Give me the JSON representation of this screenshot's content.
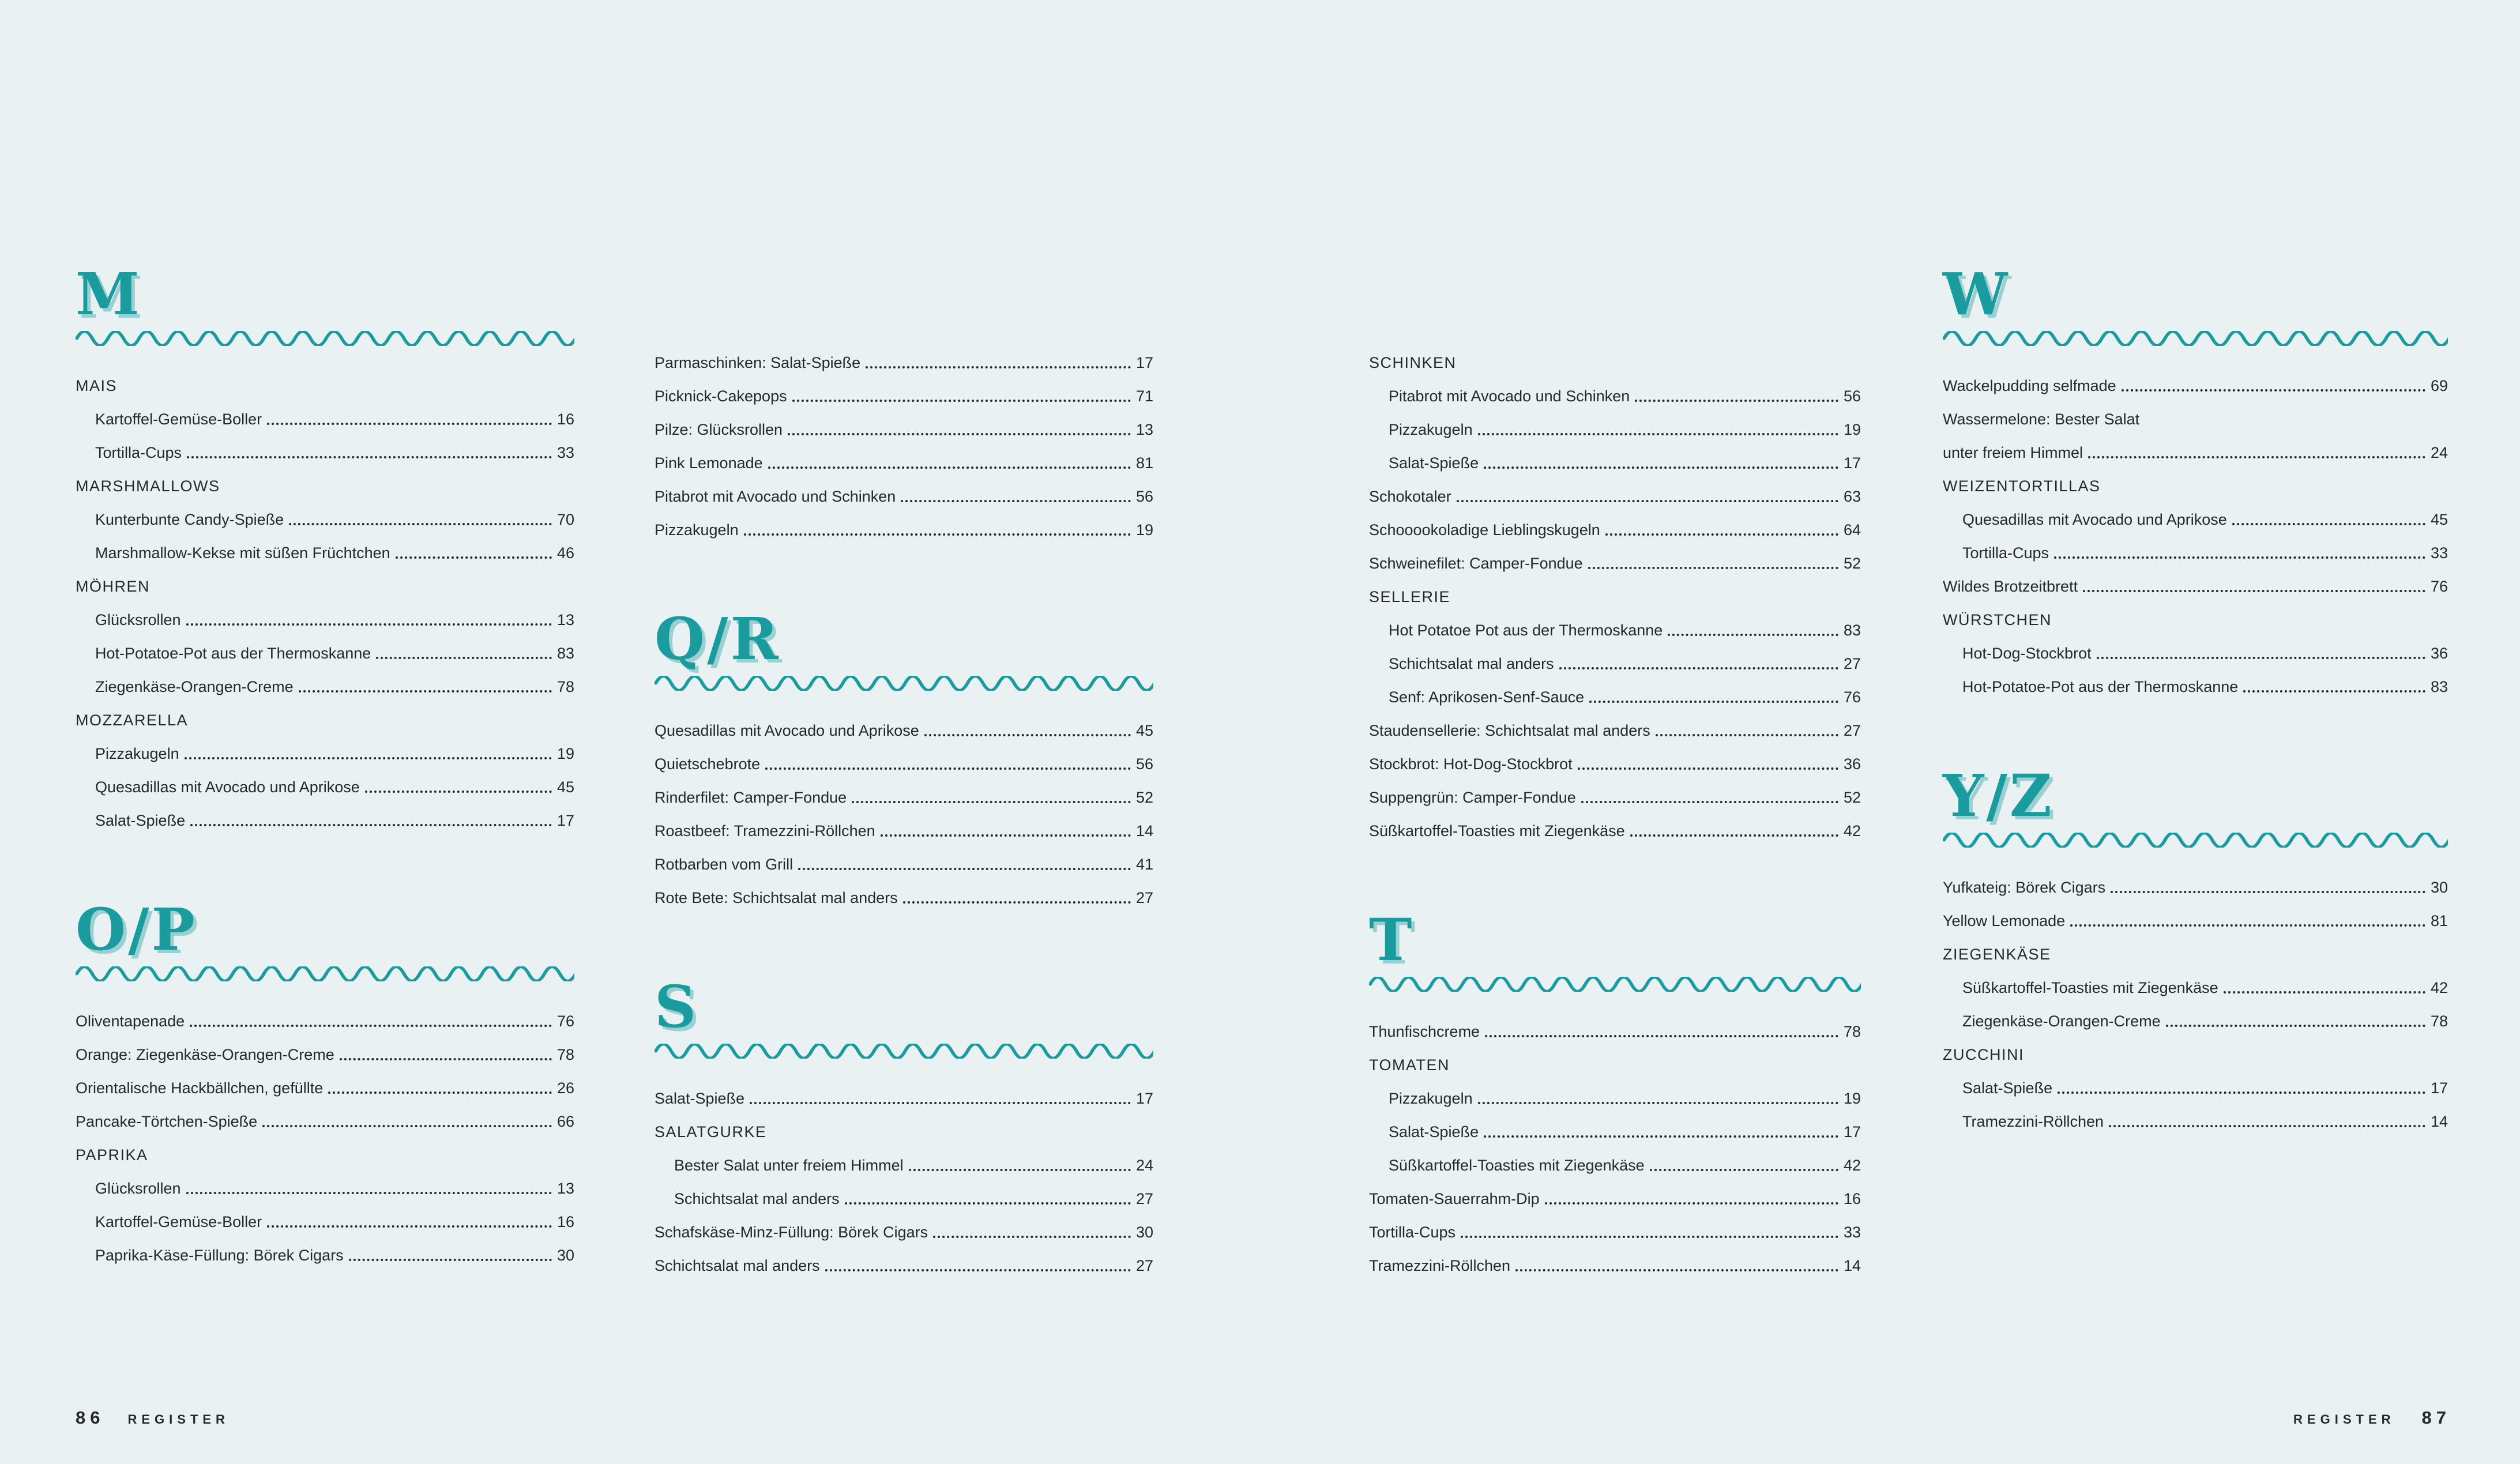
{
  "page": {
    "background": "#e9f1f2",
    "accent": "#1a9b9e",
    "text_color": "#26292c",
    "footer_left": {
      "page_number": "86",
      "section_label": "REGISTER"
    },
    "footer_right": {
      "section_label": "REGISTER",
      "page_number": "87"
    }
  },
  "columns": [
    {
      "id": "col-1",
      "blocks": [
        {
          "type": "letter",
          "text": "M"
        },
        {
          "type": "subhead",
          "text": "MAIS"
        },
        {
          "type": "entry",
          "indent": true,
          "text": "Kartoffel-Gemüse-Boller",
          "page": "16"
        },
        {
          "type": "entry",
          "indent": true,
          "text": "Tortilla-Cups",
          "page": "33"
        },
        {
          "type": "subhead",
          "text": "MARSHMALLOWS"
        },
        {
          "type": "entry",
          "indent": true,
          "text": "Kunterbunte Candy-Spieße",
          "page": "70"
        },
        {
          "type": "entry",
          "indent": true,
          "text": "Marshmallow-Kekse mit süßen Früchtchen",
          "page": "46"
        },
        {
          "type": "subhead",
          "text": "MÖHREN"
        },
        {
          "type": "entry",
          "indent": true,
          "text": "Glücksrollen",
          "page": "13"
        },
        {
          "type": "entry",
          "indent": true,
          "text": "Hot-Potatoe-Pot aus der Thermoskanne",
          "page": "83"
        },
        {
          "type": "entry",
          "indent": true,
          "text": "Ziegenkäse-Orangen-Creme",
          "page": "78"
        },
        {
          "type": "subhead",
          "text": "MOZZARELLA"
        },
        {
          "type": "entry",
          "indent": true,
          "text": "Pizzakugeln",
          "page": "19"
        },
        {
          "type": "entry",
          "indent": true,
          "text": "Quesadillas mit Avocado und Aprikose",
          "page": "45"
        },
        {
          "type": "entry",
          "indent": true,
          "text": "Salat-Spieße",
          "page": "17"
        },
        {
          "type": "letter",
          "text": "O/P"
        },
        {
          "type": "entry",
          "text": "Oliventapenade",
          "page": "76"
        },
        {
          "type": "entry",
          "text": "Orange: Ziegenkäse-Orangen-Creme",
          "page": "78"
        },
        {
          "type": "entry",
          "text": "Orientalische Hackbällchen, gefüllte",
          "page": "26"
        },
        {
          "type": "entry",
          "text": "Pancake-Törtchen-Spieße",
          "page": "66"
        },
        {
          "type": "subhead",
          "text": "PAPRIKA"
        },
        {
          "type": "entry",
          "indent": true,
          "text": "Glücksrollen",
          "page": "13"
        },
        {
          "type": "entry",
          "indent": true,
          "text": "Kartoffel-Gemüse-Boller",
          "page": "16"
        },
        {
          "type": "entry",
          "indent": true,
          "text": "Paprika-Käse-Füllung: Börek Cigars",
          "page": "30"
        }
      ]
    },
    {
      "id": "col-2",
      "blocks": [
        {
          "type": "spacer"
        },
        {
          "type": "entry",
          "text": "Parmaschinken: Salat-Spieße",
          "page": "17"
        },
        {
          "type": "entry",
          "text": "Picknick-Cakepops",
          "page": "71"
        },
        {
          "type": "entry",
          "text": "Pilze: Glücksrollen",
          "page": "13"
        },
        {
          "type": "entry",
          "text": "Pink Lemonade",
          "page": "81"
        },
        {
          "type": "entry",
          "text": "Pitabrot mit Avocado und Schinken",
          "page": "56"
        },
        {
          "type": "entry",
          "text": "Pizzakugeln",
          "page": "19"
        },
        {
          "type": "letter",
          "text": "Q/R"
        },
        {
          "type": "entry",
          "text": "Quesadillas mit Avocado und Aprikose",
          "page": "45"
        },
        {
          "type": "entry",
          "text": "Quietschebrote",
          "page": "56"
        },
        {
          "type": "entry",
          "text": "Rinderfilet: Camper-Fondue",
          "page": "52"
        },
        {
          "type": "entry",
          "text": "Roastbeef: Tramezzini-Röllchen",
          "page": "14"
        },
        {
          "type": "entry",
          "text": "Rotbarben vom Grill",
          "page": "41"
        },
        {
          "type": "entry",
          "text": "Rote Bete: Schichtsalat mal anders",
          "page": "27"
        },
        {
          "type": "letter",
          "text": "S"
        },
        {
          "type": "entry",
          "text": "Salat-Spieße",
          "page": "17"
        },
        {
          "type": "subhead",
          "text": "SALATGURKE"
        },
        {
          "type": "entry",
          "indent": true,
          "text": "Bester Salat unter freiem Himmel",
          "page": "24"
        },
        {
          "type": "entry",
          "indent": true,
          "text": "Schichtsalat mal anders",
          "page": "27"
        },
        {
          "type": "entry",
          "text": "Schafskäse-Minz-Füllung: Börek Cigars",
          "page": "30"
        },
        {
          "type": "entry",
          "text": "Schichtsalat mal anders",
          "page": "27"
        }
      ]
    },
    {
      "id": "col-3",
      "blocks": [
        {
          "type": "spacer"
        },
        {
          "type": "subhead",
          "text": "SCHINKEN"
        },
        {
          "type": "entry",
          "indent": true,
          "text": "Pitabrot mit Avocado und Schinken",
          "page": "56"
        },
        {
          "type": "entry",
          "indent": true,
          "text": "Pizzakugeln",
          "page": "19"
        },
        {
          "type": "entry",
          "indent": true,
          "text": "Salat-Spieße",
          "page": "17"
        },
        {
          "type": "entry",
          "text": "Schokotaler",
          "page": "63"
        },
        {
          "type": "entry",
          "text": "Schooookoladige Lieblingskugeln",
          "page": "64"
        },
        {
          "type": "entry",
          "text": "Schweinefilet: Camper-Fondue",
          "page": "52"
        },
        {
          "type": "subhead",
          "text": "SELLERIE"
        },
        {
          "type": "entry",
          "indent": true,
          "text": "Hot Potatoe Pot aus der Thermoskanne",
          "page": "83"
        },
        {
          "type": "entry",
          "indent": true,
          "text": "Schichtsalat mal anders",
          "page": "27"
        },
        {
          "type": "entry",
          "indent": true,
          "text": "Senf: Aprikosen-Senf-Sauce",
          "page": "76"
        },
        {
          "type": "entry",
          "text": "Staudensellerie: Schichtsalat mal anders",
          "page": "27"
        },
        {
          "type": "entry",
          "text": "Stockbrot: Hot-Dog-Stockbrot",
          "page": "36"
        },
        {
          "type": "entry",
          "text": "Suppengrün: Camper-Fondue",
          "page": "52"
        },
        {
          "type": "entry",
          "text": "Süßkartoffel-Toasties mit Ziegenkäse",
          "page": "42"
        },
        {
          "type": "letter",
          "text": "T"
        },
        {
          "type": "entry",
          "text": "Thunfischcreme",
          "page": "78"
        },
        {
          "type": "subhead",
          "text": "TOMATEN"
        },
        {
          "type": "entry",
          "indent": true,
          "text": "Pizzakugeln",
          "page": "19"
        },
        {
          "type": "entry",
          "indent": true,
          "text": "Salat-Spieße",
          "page": "17"
        },
        {
          "type": "entry",
          "indent": true,
          "text": "Süßkartoffel-Toasties mit Ziegenkäse",
          "page": "42"
        },
        {
          "type": "entry",
          "text": "Tomaten-Sauerrahm-Dip",
          "page": "16"
        },
        {
          "type": "entry",
          "text": "Tortilla-Cups",
          "page": "33"
        },
        {
          "type": "entry",
          "text": "Tramezzini-Röllchen",
          "page": "14"
        }
      ]
    },
    {
      "id": "col-4",
      "blocks": [
        {
          "type": "letter",
          "text": "W"
        },
        {
          "type": "entry",
          "text": "Wackelpudding selfmade",
          "page": "69"
        },
        {
          "type": "entry",
          "text": "Wassermelone: Bester Salat",
          "page": null,
          "no_leader": true
        },
        {
          "type": "entry",
          "text": "unter freiem Himmel",
          "page": "24"
        },
        {
          "type": "subhead",
          "text": "WEIZENTORTILLAS"
        },
        {
          "type": "entry",
          "indent": true,
          "text": "Quesadillas mit Avocado und Aprikose",
          "page": "45"
        },
        {
          "type": "entry",
          "indent": true,
          "text": "Tortilla-Cups",
          "page": "33"
        },
        {
          "type": "entry",
          "text": "Wildes Brotzeitbrett",
          "page": "76"
        },
        {
          "type": "subhead",
          "text": "WÜRSTCHEN"
        },
        {
          "type": "entry",
          "indent": true,
          "text": "Hot-Dog-Stockbrot",
          "page": "36"
        },
        {
          "type": "entry",
          "indent": true,
          "text": "Hot-Potatoe-Pot aus der Thermoskanne",
          "page": "83"
        },
        {
          "type": "letter",
          "text": "Y/Z"
        },
        {
          "type": "entry",
          "text": "Yufkateig: Börek Cigars",
          "page": "30"
        },
        {
          "type": "entry",
          "text": "Yellow Lemonade",
          "page": "81"
        },
        {
          "type": "subhead",
          "text": "ZIEGENKÄSE"
        },
        {
          "type": "entry",
          "indent": true,
          "text": "Süßkartoffel-Toasties mit Ziegenkäse",
          "page": "42"
        },
        {
          "type": "entry",
          "indent": true,
          "text": "Ziegenkäse-Orangen-Creme",
          "page": "78"
        },
        {
          "type": "subhead",
          "text": "ZUCCHINI"
        },
        {
          "type": "entry",
          "indent": true,
          "text": "Salat-Spieße",
          "page": "17"
        },
        {
          "type": "entry",
          "indent": true,
          "text": "Tramezzini-Röllchen",
          "page": "14"
        }
      ]
    }
  ]
}
